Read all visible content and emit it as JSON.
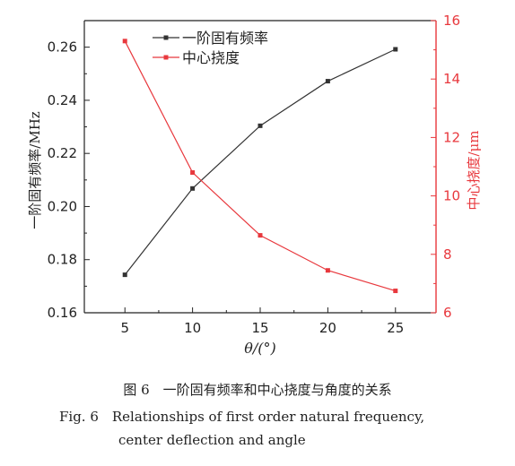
{
  "chart_data": {
    "type": "line",
    "x": [
      5,
      10,
      15,
      20,
      25
    ],
    "xlabel": "θ/(°)",
    "xlim": [
      2,
      28
    ],
    "xticks": [
      "5",
      "10",
      "15",
      "20",
      "25"
    ],
    "series": [
      {
        "name": "一阶固有频率",
        "axis": "left",
        "color": "#333333",
        "values": [
          0.1743,
          0.2068,
          0.2304,
          0.2472,
          0.2592
        ]
      },
      {
        "name": "中心挠度",
        "axis": "right",
        "color": "#e8383d",
        "values": [
          15.3,
          10.8,
          8.65,
          7.45,
          6.75
        ]
      }
    ],
    "ylabel_left": "一阶固有频率/MHz",
    "ylim_left": [
      0.16,
      0.27
    ],
    "yticks_left": [
      "0.16",
      "0.18",
      "0.20",
      "0.22",
      "0.24",
      "0.26"
    ],
    "ylabel_right": "中心挠度/μm",
    "ylim_right": [
      6,
      16
    ],
    "yticks_right": [
      "6",
      "8",
      "10",
      "12",
      "14",
      "16"
    ],
    "right_axis_color": "#e8383d",
    "legend_position": "top-left"
  },
  "caption": {
    "cn": "图 6　一阶固有频率和中心挠度与角度的关系",
    "en_line1": "Fig. 6　Relationships of first order natural frequency,",
    "en_line2": "center deflection and angle"
  }
}
